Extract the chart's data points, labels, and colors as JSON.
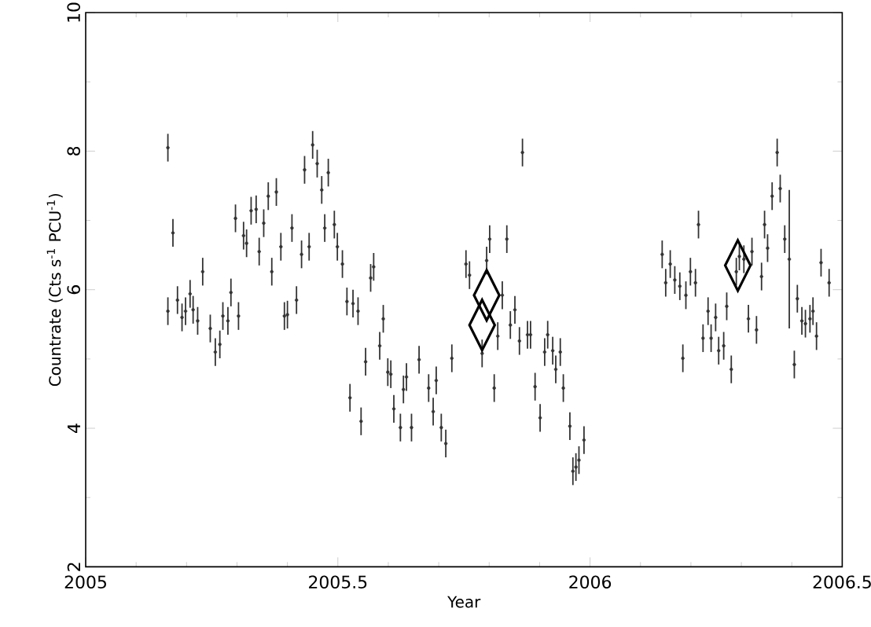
{
  "chart_data": {
    "type": "scatter",
    "xlabel": "Year",
    "ylabel": "Countrate (Cts s$^{-1}$ PCU$^{-1}$)",
    "xlim": [
      2005,
      2006.5
    ],
    "xticks": [
      2005,
      2005.5,
      2006,
      2006.5
    ],
    "ylim": [
      2,
      10
    ],
    "yticks": [
      2,
      4,
      6,
      8,
      10
    ],
    "grid": false,
    "series": [
      {
        "color": "#333333",
        "x": [
          2005.163,
          2005.173,
          2005.163,
          2005.182,
          2005.191,
          2005.198,
          2005.207,
          2005.213,
          2005.222,
          2005.232,
          2005.247,
          2005.257,
          2005.266,
          2005.272,
          2005.282,
          2005.288,
          2005.297,
          2005.303,
          2005.313,
          2005.319,
          2005.328,
          2005.338,
          2005.344,
          2005.353,
          2005.362,
          2005.369,
          2005.378,
          2005.387,
          2005.394,
          2005.4,
          2005.409,
          2005.418,
          2005.428,
          2005.434,
          2005.443,
          2005.45,
          2005.459,
          2005.468,
          2005.474,
          2005.481,
          2005.493,
          2005.499,
          2005.509,
          2005.518,
          2005.524,
          2005.53,
          2005.54,
          2005.546,
          2005.555,
          2005.565,
          2005.571,
          2005.583,
          2005.59,
          2005.599,
          2005.605,
          2005.611,
          2005.624,
          2005.63,
          2005.636,
          2005.646,
          2005.661,
          2005.68,
          2005.689,
          2005.695,
          2005.705,
          2005.714,
          2005.726,
          2005.754,
          2005.761,
          2005.786,
          2005.795,
          2005.801,
          2005.81,
          2005.817,
          2005.826,
          2005.835,
          2005.842,
          2005.851,
          2005.86,
          2005.866,
          2005.876,
          2005.882,
          2005.891,
          2005.901,
          2005.91,
          2005.916,
          2005.926,
          2005.932,
          2005.941,
          2005.947,
          2005.96,
          2005.966,
          2005.972,
          2005.978,
          2005.988,
          2006.143,
          2006.15,
          2006.159,
          2006.168,
          2006.178,
          2006.184,
          2006.19,
          2006.199,
          2006.209,
          2006.215,
          2006.224,
          2006.234,
          2006.24,
          2006.249,
          2006.255,
          2006.265,
          2006.271,
          2006.28,
          2006.29,
          2006.296,
          2006.305,
          2006.314,
          2006.321,
          2006.33,
          2006.34,
          2006.346,
          2006.352,
          2006.361,
          2006.371,
          2006.377,
          2006.386,
          2006.395,
          2006.405,
          2006.411,
          2006.42,
          2006.427,
          2006.436,
          2006.442,
          2006.449,
          2006.458,
          2006.474
        ],
        "values": [
          8.05,
          6.82,
          5.69,
          5.85,
          5.6,
          5.69,
          5.94,
          5.71,
          5.55,
          6.26,
          5.44,
          5.1,
          5.21,
          5.62,
          5.55,
          5.96,
          7.03,
          5.62,
          6.78,
          6.67,
          7.14,
          7.16,
          6.55,
          6.96,
          7.35,
          6.26,
          7.41,
          6.62,
          5.62,
          5.64,
          6.89,
          5.85,
          6.51,
          7.73,
          6.62,
          8.09,
          7.82,
          7.44,
          6.89,
          7.69,
          6.94,
          6.62,
          6.37,
          5.83,
          4.44,
          5.8,
          5.69,
          4.1,
          4.96,
          6.17,
          6.33,
          5.19,
          5.58,
          4.81,
          4.78,
          4.28,
          4.01,
          4.56,
          4.74,
          4.01,
          4.99,
          4.58,
          4.24,
          4.69,
          4.01,
          3.78,
          5.01,
          6.37,
          6.21,
          5.08,
          6.42,
          6.73,
          4.58,
          5.33,
          5.92,
          6.73,
          5.49,
          5.71,
          5.26,
          7.98,
          5.35,
          5.35,
          4.6,
          4.15,
          5.1,
          5.35,
          5.12,
          4.85,
          5.1,
          4.58,
          4.03,
          3.38,
          3.44,
          3.54,
          3.83,
          6.51,
          6.1,
          6.37,
          6.14,
          6.05,
          5.01,
          5.92,
          6.26,
          6.1,
          6.94,
          5.3,
          5.69,
          5.3,
          5.6,
          5.12,
          5.19,
          5.76,
          4.85,
          6.26,
          6.48,
          6.44,
          5.58,
          6.55,
          5.42,
          6.19,
          6.94,
          6.6,
          7.35,
          7.98,
          7.46,
          6.73,
          6.44,
          4.92,
          5.87,
          5.55,
          5.51,
          5.58,
          5.69,
          5.33,
          6.39,
          6.1
        ],
        "errors": [
          0.2,
          0.2,
          0.2,
          0.2,
          0.2,
          0.2,
          0.2,
          0.2,
          0.2,
          0.2,
          0.2,
          0.2,
          0.2,
          0.2,
          0.2,
          0.2,
          0.2,
          0.2,
          0.2,
          0.2,
          0.2,
          0.2,
          0.2,
          0.2,
          0.2,
          0.2,
          0.2,
          0.2,
          0.2,
          0.2,
          0.2,
          0.2,
          0.2,
          0.2,
          0.2,
          0.2,
          0.2,
          0.2,
          0.2,
          0.2,
          0.2,
          0.2,
          0.2,
          0.2,
          0.2,
          0.2,
          0.2,
          0.2,
          0.2,
          0.2,
          0.2,
          0.2,
          0.2,
          0.2,
          0.2,
          0.2,
          0.2,
          0.2,
          0.2,
          0.2,
          0.2,
          0.2,
          0.2,
          0.2,
          0.2,
          0.2,
          0.2,
          0.2,
          0.2,
          0.2,
          0.2,
          0.2,
          0.2,
          0.2,
          0.2,
          0.2,
          0.2,
          0.2,
          0.2,
          0.2,
          0.2,
          0.2,
          0.2,
          0.2,
          0.2,
          0.2,
          0.2,
          0.2,
          0.2,
          0.2,
          0.2,
          0.2,
          0.2,
          0.2,
          0.2,
          0.2,
          0.2,
          0.2,
          0.2,
          0.2,
          0.2,
          0.2,
          0.2,
          0.2,
          0.2,
          0.2,
          0.2,
          0.2,
          0.2,
          0.2,
          0.2,
          0.2,
          0.2,
          0.2,
          0.2,
          0.2,
          0.2,
          0.2,
          0.2,
          0.2,
          0.2,
          0.2,
          0.2,
          0.2,
          0.2,
          0.2,
          1.0,
          0.2,
          0.2,
          0.2,
          0.2,
          0.2,
          0.2,
          0.2,
          0.2,
          0.2
        ]
      },
      {
        "color": "#000000",
        "marker": "diamond",
        "x": [
          2005.795,
          2005.786,
          2006.293
        ],
        "values": [
          5.92,
          5.49,
          6.35
        ]
      }
    ]
  }
}
